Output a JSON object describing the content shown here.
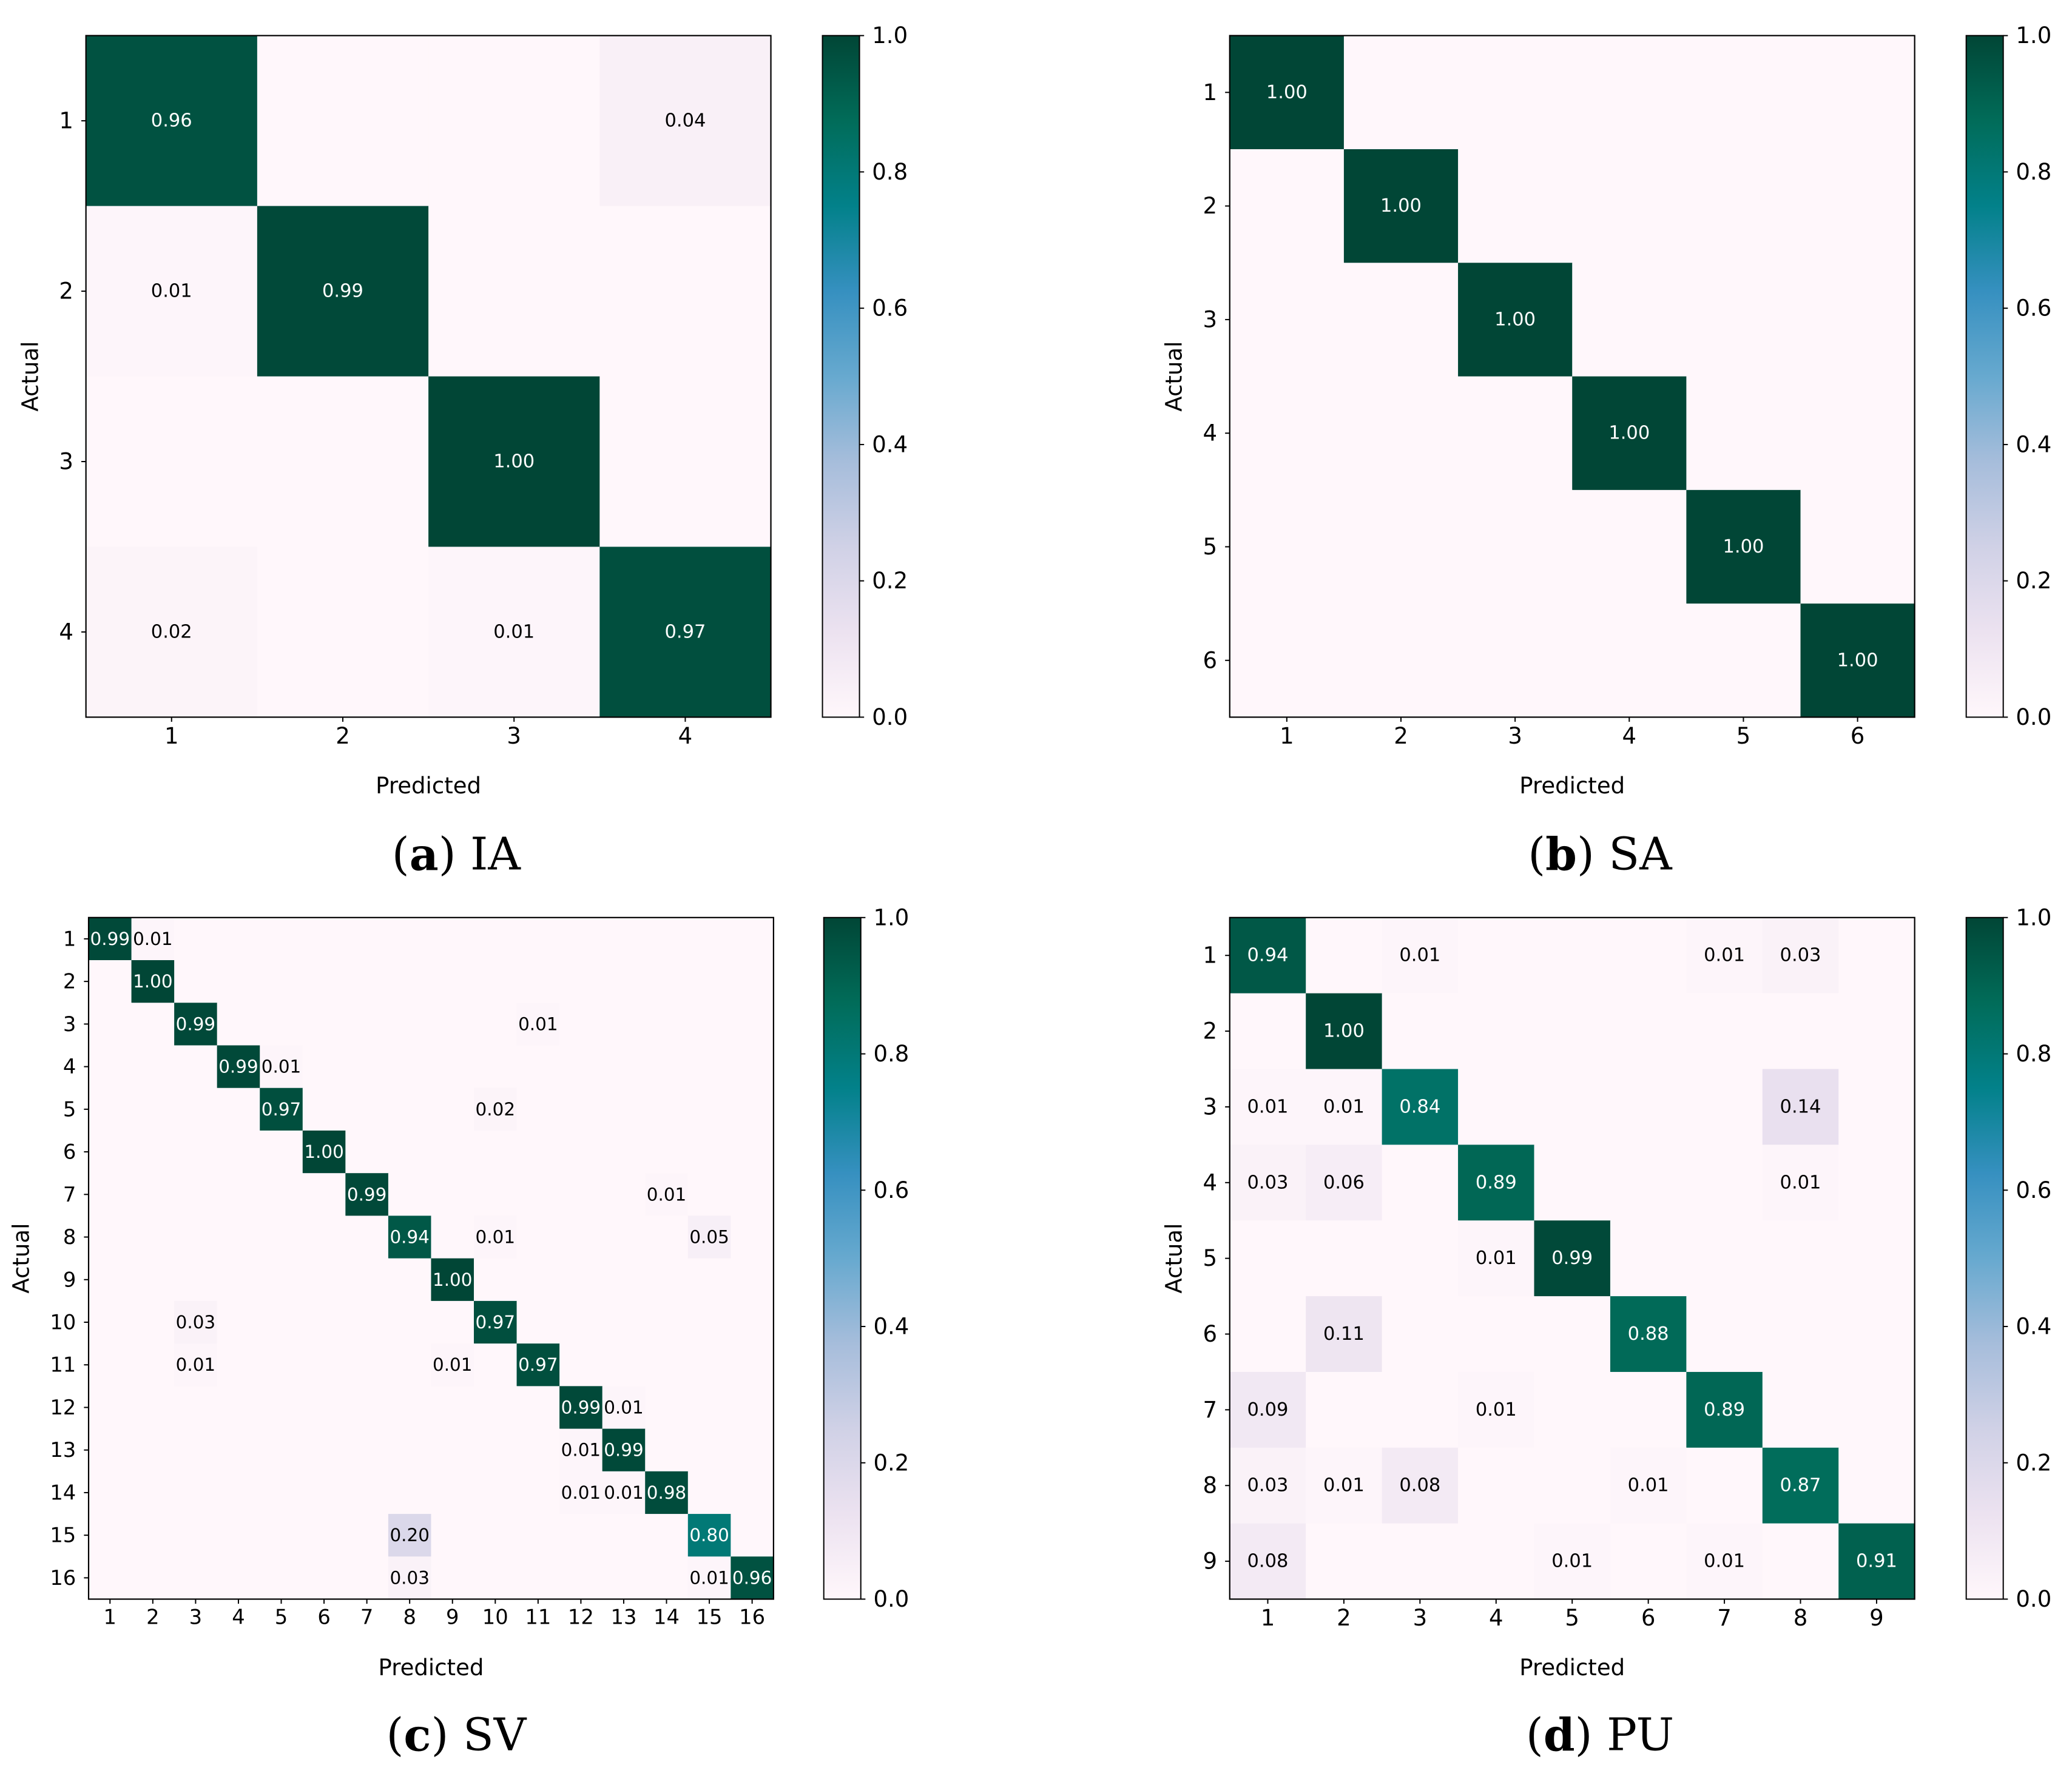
{
  "colormap": [
    "#fff7fb",
    "#ece2f0",
    "#d0d1e6",
    "#a6bddb",
    "#67a9cf",
    "#3690c0",
    "#02818a",
    "#016c59",
    "#014636"
  ],
  "colorbar_ticks": [
    "0.0",
    "0.2",
    "0.4",
    "0.6",
    "0.8",
    "1.0"
  ],
  "chart_data": [
    {
      "type": "heatmap",
      "panel": "a",
      "caption_letter": "a",
      "caption_text": "IA",
      "xlabel": "Predicted",
      "ylabel": "Actual",
      "labels": [
        "1",
        "2",
        "3",
        "4"
      ],
      "zlim": [
        0,
        1
      ],
      "matrix": [
        [
          0.96,
          0,
          0,
          0.04
        ],
        [
          0.01,
          0.99,
          0,
          0
        ],
        [
          0,
          0,
          1.0,
          0
        ],
        [
          0.02,
          0,
          0.01,
          0.97
        ]
      ],
      "cell_labels": [
        [
          "0.96",
          "",
          "",
          "0.04"
        ],
        [
          "0.01",
          "0.99",
          "",
          ""
        ],
        [
          "",
          "",
          "1.00",
          ""
        ],
        [
          "0.02",
          "",
          "0.01",
          "0.97"
        ]
      ]
    },
    {
      "type": "heatmap",
      "panel": "b",
      "caption_letter": "b",
      "caption_text": "SA",
      "xlabel": "Predicted",
      "ylabel": "Actual",
      "labels": [
        "1",
        "2",
        "3",
        "4",
        "5",
        "6"
      ],
      "zlim": [
        0,
        1
      ],
      "matrix": [
        [
          1.0,
          0,
          0,
          0,
          0,
          0
        ],
        [
          0,
          1.0,
          0,
          0,
          0,
          0
        ],
        [
          0,
          0,
          1.0,
          0,
          0,
          0
        ],
        [
          0,
          0,
          0,
          1.0,
          0,
          0
        ],
        [
          0,
          0,
          0,
          0,
          1.0,
          0
        ],
        [
          0,
          0,
          0,
          0,
          0,
          1.0
        ]
      ],
      "cell_labels": [
        [
          "1.00",
          "",
          "",
          "",
          "",
          ""
        ],
        [
          "",
          "1.00",
          "",
          "",
          "",
          ""
        ],
        [
          "",
          "",
          "1.00",
          "",
          "",
          ""
        ],
        [
          "",
          "",
          "",
          "1.00",
          "",
          ""
        ],
        [
          "",
          "",
          "",
          "",
          "1.00",
          ""
        ],
        [
          "",
          "",
          "",
          "",
          "",
          "1.00"
        ]
      ]
    },
    {
      "type": "heatmap",
      "panel": "c",
      "caption_letter": "c",
      "caption_text": "SV",
      "xlabel": "Predicted",
      "ylabel": "Actual",
      "labels": [
        "1",
        "2",
        "3",
        "4",
        "5",
        "6",
        "7",
        "8",
        "9",
        "10",
        "11",
        "12",
        "13",
        "14",
        "15",
        "16"
      ],
      "zlim": [
        0,
        1
      ],
      "matrix": [
        [
          0.99,
          0.01,
          0,
          0,
          0,
          0,
          0,
          0,
          0,
          0,
          0,
          0,
          0,
          0,
          0,
          0
        ],
        [
          0,
          1.0,
          0,
          0,
          0,
          0,
          0,
          0,
          0,
          0,
          0,
          0,
          0,
          0,
          0,
          0
        ],
        [
          0,
          0,
          0.99,
          0,
          0,
          0,
          0,
          0,
          0,
          0,
          0.01,
          0,
          0,
          0,
          0,
          0
        ],
        [
          0,
          0,
          0,
          0.99,
          0.01,
          0,
          0,
          0,
          0,
          0,
          0,
          0,
          0,
          0,
          0,
          0
        ],
        [
          0,
          0,
          0,
          0,
          0.97,
          0,
          0,
          0,
          0,
          0.02,
          0,
          0,
          0,
          0,
          0,
          0
        ],
        [
          0,
          0,
          0,
          0,
          0,
          1.0,
          0,
          0,
          0,
          0,
          0,
          0,
          0,
          0,
          0,
          0
        ],
        [
          0,
          0,
          0,
          0,
          0,
          0,
          0.99,
          0,
          0,
          0,
          0,
          0,
          0,
          0.01,
          0,
          0
        ],
        [
          0,
          0,
          0,
          0,
          0,
          0,
          0,
          0.94,
          0,
          0.01,
          0,
          0,
          0,
          0,
          0.05,
          0
        ],
        [
          0,
          0,
          0,
          0,
          0,
          0,
          0,
          0,
          1.0,
          0,
          0,
          0,
          0,
          0,
          0,
          0
        ],
        [
          0,
          0,
          0.03,
          0,
          0,
          0,
          0,
          0,
          0,
          0.97,
          0,
          0,
          0,
          0,
          0,
          0
        ],
        [
          0,
          0,
          0.01,
          0,
          0,
          0,
          0,
          0,
          0.01,
          0,
          0.97,
          0,
          0,
          0,
          0,
          0
        ],
        [
          0,
          0,
          0,
          0,
          0,
          0,
          0,
          0,
          0,
          0,
          0,
          0.99,
          0.01,
          0,
          0,
          0
        ],
        [
          0,
          0,
          0,
          0,
          0,
          0,
          0,
          0,
          0,
          0,
          0,
          0.01,
          0.99,
          0,
          0,
          0
        ],
        [
          0,
          0,
          0,
          0,
          0,
          0,
          0,
          0,
          0,
          0,
          0,
          0.01,
          0.01,
          0.98,
          0,
          0
        ],
        [
          0,
          0,
          0,
          0,
          0,
          0,
          0,
          0.2,
          0,
          0,
          0,
          0,
          0,
          0,
          0.8,
          0
        ],
        [
          0,
          0,
          0,
          0,
          0,
          0,
          0,
          0.03,
          0,
          0,
          0,
          0,
          0,
          0,
          0.01,
          0.96
        ]
      ],
      "cell_labels": [
        [
          "0.99",
          "0.01",
          "",
          "",
          "",
          "",
          "",
          "",
          "",
          "",
          "",
          "",
          "",
          "",
          "",
          ""
        ],
        [
          "",
          "1.00",
          "",
          "",
          "",
          "",
          "",
          "",
          "",
          "",
          "",
          "",
          "",
          "",
          "",
          ""
        ],
        [
          "",
          "",
          "0.99",
          "",
          "",
          "",
          "",
          "",
          "",
          "",
          "0.01",
          "",
          "",
          "",
          "",
          ""
        ],
        [
          "",
          "",
          "",
          "0.99",
          "0.01",
          "",
          "",
          "",
          "",
          "",
          "",
          "",
          "",
          "",
          "",
          ""
        ],
        [
          "",
          "",
          "",
          "",
          "0.97",
          "",
          "",
          "",
          "",
          "0.02",
          "",
          "",
          "",
          "",
          "",
          ""
        ],
        [
          "",
          "",
          "",
          "",
          "",
          "1.00",
          "",
          "",
          "",
          "",
          "",
          "",
          "",
          "",
          "",
          ""
        ],
        [
          "",
          "",
          "",
          "",
          "",
          "",
          "0.99",
          "",
          "",
          "",
          "",
          "",
          "",
          "0.01",
          "",
          ""
        ],
        [
          "",
          "",
          "",
          "",
          "",
          "",
          "",
          "0.94",
          "",
          "0.01",
          "",
          "",
          "",
          "",
          "0.05",
          ""
        ],
        [
          "",
          "",
          "",
          "",
          "",
          "",
          "",
          "",
          "1.00",
          "",
          "",
          "",
          "",
          "",
          "",
          ""
        ],
        [
          "",
          "",
          "0.03",
          "",
          "",
          "",
          "",
          "",
          "",
          "0.97",
          "",
          "",
          "",
          "",
          "",
          ""
        ],
        [
          "",
          "",
          "0.01",
          "",
          "",
          "",
          "",
          "",
          "0.01",
          "",
          "0.97",
          "",
          "",
          "",
          "",
          ""
        ],
        [
          "",
          "",
          "",
          "",
          "",
          "",
          "",
          "",
          "",
          "",
          "",
          "0.99",
          "0.01",
          "",
          "",
          ""
        ],
        [
          "",
          "",
          "",
          "",
          "",
          "",
          "",
          "",
          "",
          "",
          "",
          "0.01",
          "0.99",
          "",
          "",
          ""
        ],
        [
          "",
          "",
          "",
          "",
          "",
          "",
          "",
          "",
          "",
          "",
          "",
          "0.01",
          "0.01",
          "0.98",
          "",
          ""
        ],
        [
          "",
          "",
          "",
          "",
          "",
          "",
          "",
          "0.20",
          "",
          "",
          "",
          "",
          "",
          "",
          "0.80",
          ""
        ],
        [
          "",
          "",
          "",
          "",
          "",
          "",
          "",
          "0.03",
          "",
          "",
          "",
          "",
          "",
          "",
          "0.01",
          "0.96"
        ]
      ]
    },
    {
      "type": "heatmap",
      "panel": "d",
      "caption_letter": "d",
      "caption_text": "PU",
      "xlabel": "Predicted",
      "ylabel": "Actual",
      "labels": [
        "1",
        "2",
        "3",
        "4",
        "5",
        "6",
        "7",
        "8",
        "9"
      ],
      "zlim": [
        0,
        1
      ],
      "matrix": [
        [
          0.94,
          0,
          0.01,
          0,
          0,
          0,
          0.01,
          0.03,
          0
        ],
        [
          0,
          1.0,
          0,
          0,
          0,
          0,
          0,
          0,
          0
        ],
        [
          0.01,
          0.01,
          0.84,
          0,
          0,
          0,
          0,
          0.14,
          0
        ],
        [
          0.03,
          0.06,
          0,
          0.89,
          0,
          0,
          0,
          0.01,
          0
        ],
        [
          0,
          0,
          0,
          0.01,
          0.99,
          0,
          0,
          0,
          0
        ],
        [
          0,
          0.11,
          0,
          0,
          0,
          0.88,
          0,
          0,
          0
        ],
        [
          0.09,
          0,
          0,
          0.01,
          0,
          0,
          0.89,
          0,
          0
        ],
        [
          0.03,
          0.01,
          0.08,
          0,
          0,
          0.01,
          0,
          0.87,
          0
        ],
        [
          0.08,
          0,
          0,
          0,
          0.01,
          0,
          0.01,
          0,
          0.91
        ]
      ],
      "cell_labels": [
        [
          "0.94",
          "",
          "0.01",
          "",
          "",
          "",
          "0.01",
          "0.03",
          ""
        ],
        [
          "",
          "1.00",
          "",
          "",
          "",
          "",
          "",
          "",
          ""
        ],
        [
          "0.01",
          "0.01",
          "0.84",
          "",
          "",
          "",
          "",
          "0.14",
          ""
        ],
        [
          "0.03",
          "0.06",
          "",
          "0.89",
          "",
          "",
          "",
          "0.01",
          ""
        ],
        [
          "",
          "",
          "",
          "0.01",
          "0.99",
          "",
          "",
          "",
          ""
        ],
        [
          "",
          "0.11",
          "",
          "",
          "",
          "0.88",
          "",
          "",
          ""
        ],
        [
          "0.09",
          "",
          "",
          "0.01",
          "",
          "",
          "0.89",
          "",
          ""
        ],
        [
          "0.03",
          "0.01",
          "0.08",
          "",
          "",
          "0.01",
          "",
          "0.87",
          ""
        ],
        [
          "0.08",
          "",
          "",
          "",
          "0.01",
          "",
          "0.01",
          "",
          "0.91"
        ]
      ]
    }
  ]
}
